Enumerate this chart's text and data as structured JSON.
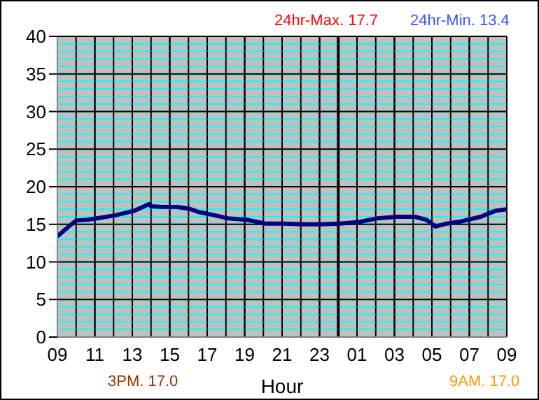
{
  "chart_data": {
    "type": "line",
    "xlabel": "Hour",
    "annotations": [
      "24hr-Max. 17.7",
      "24hr-Min. 13.4",
      "3PM. 17.0",
      "9AM. 17.0"
    ],
    "x": [
      "--01-01T09:00",
      "--01-01T09:36",
      "--01-01T10:00",
      "--01-01T10:36",
      "--01-01T11:24",
      "--01-01T12:06",
      "--01-01T13:06",
      "--01-01T13:54",
      "--01-01T14:00",
      "--01-01T14:36",
      "--01-01T15:24",
      "--01-01T16:00",
      "--01-01T16:36",
      "--01-01T17:24",
      "--01-01T18:06",
      "--01-01T19:06",
      "--01-01T20:06",
      "--01-01T21:06",
      "--01-01T22:06",
      "--01-01T23:06",
      "--01-02T00:06",
      "--01-02T01:06",
      "--01-02T02:06",
      "--01-02T03:06",
      "--01-02T04:06",
      "--01-02T04:42",
      "--01-02T05:12",
      "--01-02T05:48",
      "--01-02T06:36",
      "--01-02T07:36",
      "--01-02T08:24",
      "--01-02T09:00"
    ],
    "series": [
      {
        "color": "#000080",
        "values": [
          13.4,
          14.7,
          15.5,
          15.6,
          15.9,
          16.2,
          16.8,
          17.7,
          17.4,
          17.3,
          17.3,
          17.1,
          16.6,
          16.2,
          15.8,
          15.6,
          15.1,
          15.1,
          15.0,
          15.0,
          15.1,
          15.3,
          15.8,
          16.0,
          16.0,
          15.6,
          14.7,
          15.1,
          15.4,
          16.0,
          16.8,
          17.0
        ]
      }
    ],
    "xlim": [
      "--01-01T09:00",
      "--01-02T09:00"
    ],
    "xticks": [
      {
        "value": "--01-01T09:00",
        "label": "09"
      },
      {
        "value": "--01-01T11:00",
        "label": "11"
      },
      {
        "value": "--01-01T13:00",
        "label": "13"
      },
      {
        "value": "--01-01T15:00",
        "label": "15"
      },
      {
        "value": "--01-01T17:00",
        "label": "17"
      },
      {
        "value": "--01-01T19:00",
        "label": "19"
      },
      {
        "value": "--01-01T21:00",
        "label": "21"
      },
      {
        "value": "--01-01T23:00",
        "label": "23"
      },
      {
        "value": "--01-02T01:00",
        "label": "01"
      },
      {
        "value": "--01-02T03:00",
        "label": "03"
      },
      {
        "value": "--01-02T05:00",
        "label": "05"
      },
      {
        "value": "--01-02T07:00",
        "label": "07"
      },
      {
        "value": "--01-02T09:00",
        "label": "09"
      }
    ],
    "ylim": [
      0,
      40
    ],
    "yticks": [
      0,
      5,
      10,
      15,
      20,
      25,
      30,
      35,
      40
    ],
    "ref_lines": [
      {
        "axis": "x",
        "value": "--01-02T00:00",
        "color": "#000000"
      }
    ],
    "grid": true,
    "legend": false,
    "marker": "none",
    "line_style": "solid"
  }
}
